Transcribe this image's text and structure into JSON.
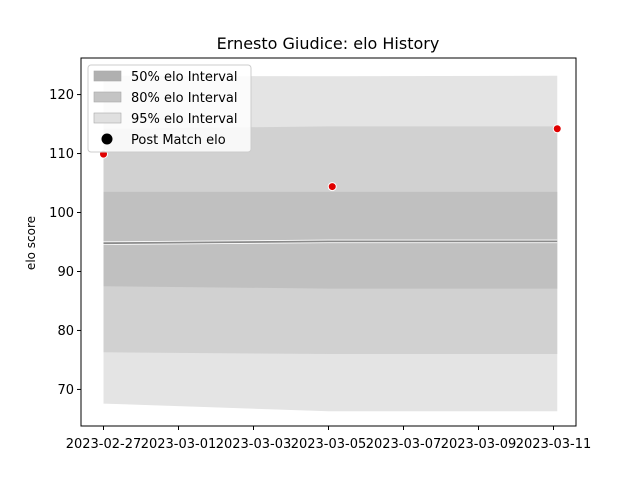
{
  "chart_data": {
    "type": "area",
    "title": "Ernesto Giudice: elo History",
    "xlabel": "",
    "ylabel": "elo score",
    "x_ticks": [
      "2023-02-27",
      "2023-03-01",
      "2023-03-03",
      "2023-03-05",
      "2023-03-07",
      "2023-03-09",
      "2023-03-11"
    ],
    "x_tick_days": [
      0,
      2,
      4,
      6,
      8,
      10,
      12
    ],
    "xlim_days": [
      -0.6,
      12.6
    ],
    "y_ticks": [
      70,
      80,
      90,
      100,
      110,
      120
    ],
    "ylim": [
      63.8,
      126.2
    ],
    "legend_position": "top-left",
    "grid": false,
    "bands": [
      {
        "name": "95% elo Interval",
        "color": "#e4e4e4",
        "x_days": [
          0,
          6,
          12.1
        ],
        "lower": [
          67.6,
          66.3,
          66.3
        ],
        "upper": [
          123.2,
          123.1,
          123.2
        ]
      },
      {
        "name": "80% elo Interval",
        "color": "#d1d1d1",
        "x_days": [
          0,
          6,
          12.1
        ],
        "lower": [
          76.3,
          76.0,
          76.0
        ],
        "upper": [
          114.2,
          114.6,
          114.6
        ]
      },
      {
        "name": "50% elo Interval",
        "color": "#c0c0c0",
        "x_days": [
          0,
          6,
          12.1
        ],
        "lower": [
          87.5,
          87.1,
          87.1
        ],
        "upper": [
          103.5,
          103.5,
          103.5
        ]
      }
    ],
    "mean_line": {
      "x_days": [
        0,
        6,
        12.1
      ],
      "values": [
        94.8,
        95.1,
        95.1
      ],
      "color": "#8a8a8a"
    },
    "points": {
      "name": "Post Match elo",
      "color": "#e00000",
      "x_days": [
        0,
        6.1,
        12.1
      ],
      "values": [
        109.9,
        104.4,
        114.2
      ]
    }
  }
}
